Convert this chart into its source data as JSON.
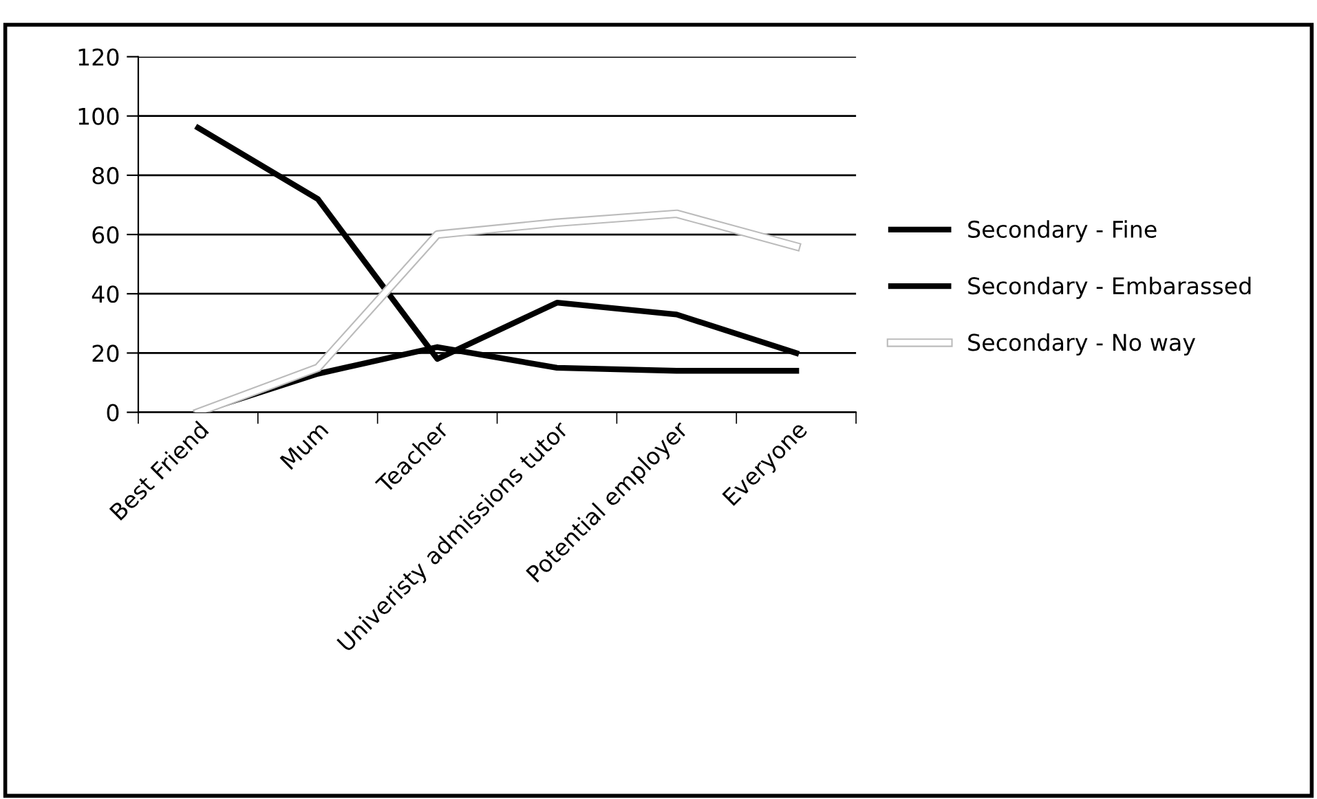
{
  "chart_data": {
    "type": "line",
    "categories": [
      "Best Friend",
      "Mum",
      "Teacher",
      "Univeristy admissions tutor",
      "Potential employer",
      "Everyone"
    ],
    "series": [
      {
        "name": "Secondary - Fine",
        "color": "#000000",
        "values": [
          96,
          72,
          18,
          37,
          33,
          20
        ]
      },
      {
        "name": "Secondary - Embarassed",
        "color": "#000000",
        "values": [
          0,
          13,
          22,
          15,
          14,
          14
        ]
      },
      {
        "name": "Secondary - No way",
        "color": "#ffffff",
        "values": [
          0,
          15,
          60,
          64,
          67,
          56
        ]
      }
    ],
    "ylim": [
      0,
      120
    ],
    "yticks": [
      0,
      20,
      40,
      60,
      80,
      100,
      120
    ],
    "grid": "y",
    "legend": "right",
    "marker": "none",
    "line_style": "solid"
  }
}
